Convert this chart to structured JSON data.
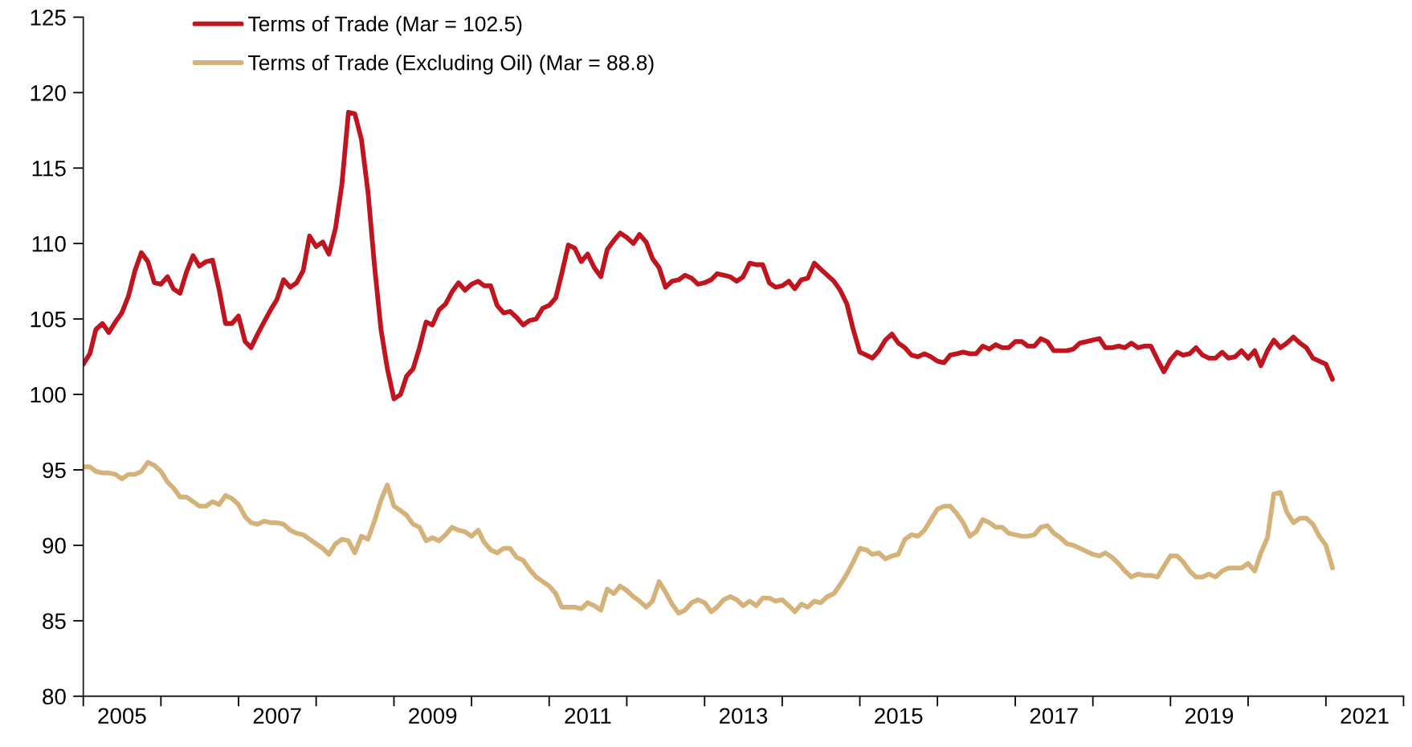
{
  "chart_data": {
    "type": "line",
    "x": [
      "2005-01",
      "2005-02",
      "2005-03",
      "2005-04",
      "2005-05",
      "2005-06",
      "2005-07",
      "2005-08",
      "2005-09",
      "2005-10",
      "2005-11",
      "2005-12",
      "2006-01",
      "2006-02",
      "2006-03",
      "2006-04",
      "2006-05",
      "2006-06",
      "2006-07",
      "2006-08",
      "2006-09",
      "2006-10",
      "2006-11",
      "2006-12",
      "2007-01",
      "2007-02",
      "2007-03",
      "2007-04",
      "2007-05",
      "2007-06",
      "2007-07",
      "2007-08",
      "2007-09",
      "2007-10",
      "2007-11",
      "2007-12",
      "2008-01",
      "2008-02",
      "2008-03",
      "2008-04",
      "2008-05",
      "2008-06",
      "2008-07",
      "2008-08",
      "2008-09",
      "2008-10",
      "2008-11",
      "2008-12",
      "2009-01",
      "2009-02",
      "2009-03",
      "2009-04",
      "2009-05",
      "2009-06",
      "2009-07",
      "2009-08",
      "2009-09",
      "2009-10",
      "2009-11",
      "2009-12",
      "2010-01",
      "2010-02",
      "2010-03",
      "2010-04",
      "2010-05",
      "2010-06",
      "2010-07",
      "2010-08",
      "2010-09",
      "2010-10",
      "2010-11",
      "2010-12",
      "2011-01",
      "2011-02",
      "2011-03",
      "2011-04",
      "2011-05",
      "2011-06",
      "2011-07",
      "2011-08",
      "2011-09",
      "2011-10",
      "2011-11",
      "2011-12",
      "2012-01",
      "2012-02",
      "2012-03",
      "2012-04",
      "2012-05",
      "2012-06",
      "2012-07",
      "2012-08",
      "2012-09",
      "2012-10",
      "2012-11",
      "2012-12",
      "2013-01",
      "2013-02",
      "2013-03",
      "2013-04",
      "2013-05",
      "2013-06",
      "2013-07",
      "2013-08",
      "2013-09",
      "2013-10",
      "2013-11",
      "2013-12",
      "2014-01",
      "2014-02",
      "2014-03",
      "2014-04",
      "2014-05",
      "2014-06",
      "2014-07",
      "2014-08",
      "2014-09",
      "2014-10",
      "2014-11",
      "2014-12",
      "2015-01",
      "2015-02",
      "2015-03",
      "2015-04",
      "2015-05",
      "2015-06",
      "2015-07",
      "2015-08",
      "2015-09",
      "2015-10",
      "2015-11",
      "2015-12",
      "2016-01",
      "2016-02",
      "2016-03",
      "2016-04",
      "2016-05",
      "2016-06",
      "2016-07",
      "2016-08",
      "2016-09",
      "2016-10",
      "2016-11",
      "2016-12",
      "2017-01",
      "2017-02",
      "2017-03",
      "2017-04",
      "2017-05",
      "2017-06",
      "2017-07",
      "2017-08",
      "2017-09",
      "2017-10",
      "2017-11",
      "2017-12",
      "2018-01",
      "2018-02",
      "2018-03",
      "2018-04",
      "2018-05",
      "2018-06",
      "2018-07",
      "2018-08",
      "2018-09",
      "2018-10",
      "2018-11",
      "2018-12",
      "2019-01",
      "2019-02",
      "2019-03",
      "2019-04",
      "2019-05",
      "2019-06",
      "2019-07",
      "2019-08",
      "2019-09",
      "2019-10",
      "2019-11",
      "2019-12",
      "2020-01",
      "2020-02",
      "2020-03",
      "2020-04",
      "2020-05",
      "2020-06",
      "2020-07",
      "2020-08",
      "2020-09",
      "2020-10",
      "2020-11",
      "2020-12",
      "2021-01",
      "2021-02"
    ],
    "series": [
      {
        "name": "Terms of Trade (Mar = 102.5)",
        "color": "#c0141e",
        "values": [
          102.0,
          102.7,
          104.3,
          104.7,
          104.1,
          104.8,
          105.4,
          106.5,
          108.2,
          109.4,
          108.8,
          107.4,
          107.3,
          107.8,
          107.0,
          106.7,
          108.1,
          109.2,
          108.5,
          108.8,
          108.9,
          107.0,
          104.7,
          104.7,
          105.2,
          103.5,
          103.1,
          104.0,
          104.8,
          105.6,
          106.3,
          107.6,
          107.1,
          107.4,
          108.2,
          110.5,
          109.8,
          110.1,
          109.3,
          111.0,
          113.9,
          118.7,
          118.6,
          116.9,
          113.4,
          108.6,
          104.3,
          101.7,
          99.7,
          100.0,
          101.2,
          101.7,
          103.1,
          104.8,
          104.6,
          105.6,
          106.0,
          106.8,
          107.4,
          106.9,
          107.3,
          107.5,
          107.2,
          107.2,
          105.9,
          105.4,
          105.5,
          105.1,
          104.6,
          104.9,
          105.0,
          105.7,
          105.9,
          106.4,
          108.0,
          109.9,
          109.7,
          108.8,
          109.3,
          108.4,
          107.8,
          109.6,
          110.2,
          110.7,
          110.4,
          110.0,
          110.6,
          110.1,
          109.0,
          108.4,
          107.1,
          107.5,
          107.6,
          107.9,
          107.7,
          107.3,
          107.4,
          107.6,
          108.0,
          107.9,
          107.8,
          107.5,
          107.8,
          108.7,
          108.6,
          108.6,
          107.4,
          107.1,
          107.2,
          107.5,
          107.0,
          107.6,
          107.7,
          108.7,
          108.3,
          107.9,
          107.5,
          106.9,
          106.0,
          104.3,
          102.8,
          102.6,
          102.4,
          102.9,
          103.6,
          104.0,
          103.4,
          103.1,
          102.6,
          102.5,
          102.7,
          102.5,
          102.2,
          102.1,
          102.6,
          102.7,
          102.8,
          102.7,
          102.7,
          103.2,
          103.0,
          103.3,
          103.1,
          103.1,
          103.5,
          103.5,
          103.2,
          103.2,
          103.7,
          103.5,
          102.9,
          102.9,
          102.9,
          103.0,
          103.4,
          103.5,
          103.6,
          103.7,
          103.1,
          103.1,
          103.2,
          103.1,
          103.4,
          103.1,
          103.2,
          103.2,
          102.3,
          101.5,
          102.3,
          102.8,
          102.6,
          102.7,
          103.1,
          102.6,
          102.4,
          102.4,
          102.8,
          102.4,
          102.5,
          102.9,
          102.4,
          102.9,
          101.9,
          102.9,
          103.6,
          103.1,
          103.4,
          103.8,
          103.4,
          103.1,
          102.4,
          102.2,
          102.0,
          101.0
        ]
      },
      {
        "name": "Terms of Trade (Excluding Oil) (Mar = 88.8)",
        "color": "#d4b27a",
        "values": [
          95.2,
          95.2,
          94.9,
          94.8,
          94.8,
          94.7,
          94.4,
          94.7,
          94.7,
          94.9,
          95.5,
          95.3,
          94.9,
          94.2,
          93.8,
          93.2,
          93.2,
          92.9,
          92.6,
          92.6,
          92.9,
          92.7,
          93.3,
          93.1,
          92.7,
          91.9,
          91.5,
          91.4,
          91.6,
          91.5,
          91.5,
          91.4,
          91.0,
          90.8,
          90.7,
          90.4,
          90.1,
          89.8,
          89.4,
          90.1,
          90.4,
          90.3,
          89.5,
          90.6,
          90.4,
          91.6,
          93.0,
          94.0,
          92.6,
          92.3,
          92.0,
          91.4,
          91.2,
          90.3,
          90.5,
          90.3,
          90.7,
          91.2,
          91.0,
          90.9,
          90.6,
          91.0,
          90.2,
          89.7,
          89.5,
          89.8,
          89.8,
          89.2,
          89.0,
          88.4,
          87.9,
          87.6,
          87.3,
          86.8,
          85.9,
          85.9,
          85.9,
          85.8,
          86.2,
          86.0,
          85.7,
          87.1,
          86.8,
          87.3,
          87.0,
          86.6,
          86.3,
          85.9,
          86.3,
          87.6,
          86.9,
          86.1,
          85.5,
          85.7,
          86.2,
          86.4,
          86.2,
          85.6,
          85.9,
          86.4,
          86.6,
          86.4,
          86.0,
          86.3,
          86.0,
          86.5,
          86.5,
          86.3,
          86.4,
          86.0,
          85.6,
          86.1,
          85.9,
          86.3,
          86.2,
          86.6,
          86.8,
          87.4,
          88.1,
          88.9,
          89.8,
          89.7,
          89.4,
          89.5,
          89.1,
          89.3,
          89.4,
          90.4,
          90.7,
          90.6,
          91.0,
          91.7,
          92.4,
          92.6,
          92.6,
          92.1,
          91.5,
          90.6,
          90.9,
          91.7,
          91.5,
          91.2,
          91.2,
          90.8,
          90.7,
          90.6,
          90.6,
          90.7,
          91.2,
          91.3,
          90.8,
          90.5,
          90.1,
          90.0,
          89.8,
          89.6,
          89.4,
          89.3,
          89.5,
          89.2,
          88.8,
          88.3,
          87.9,
          88.1,
          88.0,
          88.0,
          87.9,
          88.6,
          89.3,
          89.3,
          88.9,
          88.3,
          87.9,
          87.9,
          88.1,
          87.9,
          88.3,
          88.5,
          88.5,
          88.5,
          88.8,
          88.3,
          89.5,
          90.5,
          93.4,
          93.5,
          92.2,
          91.5,
          91.8,
          91.8,
          91.4,
          90.6,
          90.0,
          88.5
        ]
      }
    ],
    "xlim": [
      "2005-01-01",
      "2022-01-01"
    ],
    "xticks": [
      {
        "value": "2005-01-01",
        "label": null
      },
      {
        "value": "2006-01-01",
        "label": null
      },
      {
        "value": "2007-01-01",
        "label": null
      },
      {
        "value": "2008-01-01",
        "label": null
      },
      {
        "value": "2009-01-01",
        "label": null
      },
      {
        "value": "2010-01-01",
        "label": null
      },
      {
        "value": "2011-01-01",
        "label": null
      },
      {
        "value": "2012-01-01",
        "label": null
      },
      {
        "value": "2013-01-01",
        "label": null
      },
      {
        "value": "2014-01-01",
        "label": null
      },
      {
        "value": "2015-01-01",
        "label": null
      },
      {
        "value": "2016-01-01",
        "label": null
      },
      {
        "value": "2017-01-01",
        "label": null
      },
      {
        "value": "2018-01-01",
        "label": null
      },
      {
        "value": "2019-01-01",
        "label": null
      },
      {
        "value": "2020-01-01",
        "label": null
      },
      {
        "value": "2021-01-01",
        "label": null
      },
      {
        "value": "2022-01-01",
        "label": null
      },
      {
        "value": "2005-07-02",
        "label": "2005"
      },
      {
        "value": "2007-07-02",
        "label": "2007"
      },
      {
        "value": "2009-07-02",
        "label": "2009"
      },
      {
        "value": "2011-07-02",
        "label": "2011"
      },
      {
        "value": "2013-07-02",
        "label": "2013"
      },
      {
        "value": "2015-07-02",
        "label": "2015"
      },
      {
        "value": "2017-07-02",
        "label": "2017"
      },
      {
        "value": "2019-07-02",
        "label": "2019"
      },
      {
        "value": "2021-07-02",
        "label": "2021"
      }
    ],
    "ylim": [
      80,
      125
    ],
    "yticks": [
      80,
      85,
      90,
      95,
      100,
      105,
      110,
      115,
      120,
      125
    ],
    "grid": false,
    "legend": "top left",
    "marker": "none",
    "line_style": "solid"
  }
}
